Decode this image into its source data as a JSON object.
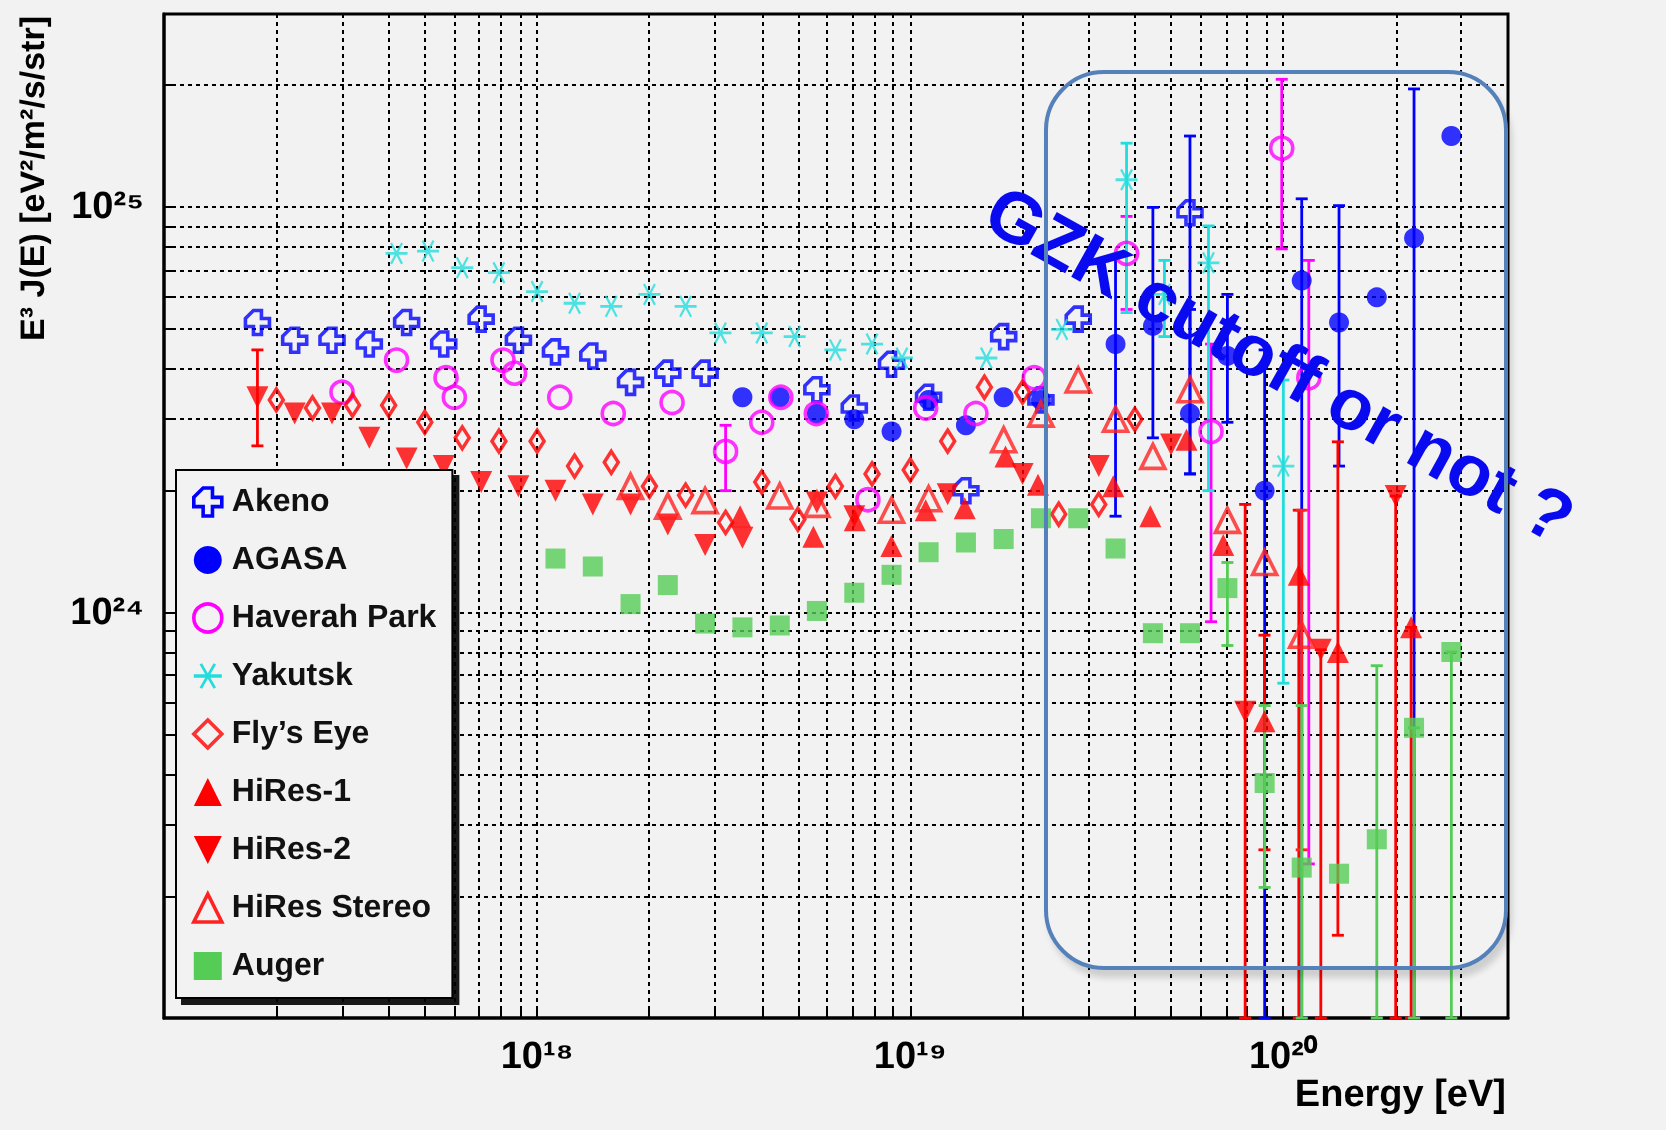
{
  "chart_data": {
    "type": "scatter",
    "xlabel": "Energy [eV]",
    "ylabel": "E³ J(E) [eV²/m²/s/str]",
    "annotations": [
      "GZK cutoff or not ?"
    ],
    "log": "xy",
    "grid": true,
    "legend": "bottom left",
    "xlim": [
      1e+17,
      4e+20
    ],
    "xticks": [
      {
        "value": 2e+17,
        "label": null
      },
      {
        "value": 3e+17,
        "label": null
      },
      {
        "value": 4e+17,
        "label": null
      },
      {
        "value": 5e+17,
        "label": null
      },
      {
        "value": 6e+17,
        "label": null
      },
      {
        "value": 7e+17,
        "label": null
      },
      {
        "value": 8e+17,
        "label": null
      },
      {
        "value": 9e+17,
        "label": null
      },
      {
        "value": 1e+18,
        "label": "10¹⁸"
      },
      {
        "value": 2e+18,
        "label": null
      },
      {
        "value": 3e+18,
        "label": null
      },
      {
        "value": 4e+18,
        "label": null
      },
      {
        "value": 5e+18,
        "label": null
      },
      {
        "value": 6e+18,
        "label": null
      },
      {
        "value": 7e+18,
        "label": null
      },
      {
        "value": 8e+18,
        "label": null
      },
      {
        "value": 9e+18,
        "label": null
      },
      {
        "value": 1e+19,
        "label": "10¹⁹"
      },
      {
        "value": 2e+19,
        "label": null
      },
      {
        "value": 3e+19,
        "label": null
      },
      {
        "value": 4e+19,
        "label": null
      },
      {
        "value": 5e+19,
        "label": null
      },
      {
        "value": 6e+19,
        "label": null
      },
      {
        "value": 7e+19,
        "label": null
      },
      {
        "value": 8e+19,
        "label": null
      },
      {
        "value": 9e+19,
        "label": null
      },
      {
        "value": 1e+20,
        "label": "10²⁰"
      },
      {
        "value": 2e+20,
        "label": null
      },
      {
        "value": 3e+20,
        "label": null
      }
    ],
    "ylim": [
      1e+23,
      3e+25
    ],
    "yticks": [
      {
        "value": 2e+23,
        "label": null
      },
      {
        "value": 3e+23,
        "label": null
      },
      {
        "value": 4e+23,
        "label": null
      },
      {
        "value": 5e+23,
        "label": null
      },
      {
        "value": 6e+23,
        "label": null
      },
      {
        "value": 7e+23,
        "label": null
      },
      {
        "value": 8e+23,
        "label": null
      },
      {
        "value": 9e+23,
        "label": null
      },
      {
        "value": 1e+24,
        "label": "10²⁴"
      },
      {
        "value": 2e+24,
        "label": null
      },
      {
        "value": 3e+24,
        "label": null
      },
      {
        "value": 4e+24,
        "label": null
      },
      {
        "value": 5e+24,
        "label": null
      },
      {
        "value": 6e+24,
        "label": null
      },
      {
        "value": 7e+24,
        "label": null
      },
      {
        "value": 8e+24,
        "label": null
      },
      {
        "value": 9e+24,
        "label": null
      },
      {
        "value": 1e+25,
        "label": "10²⁵"
      },
      {
        "value": 2e+25,
        "label": null
      }
    ],
    "series": [
      {
        "name": "Akeno",
        "color": "#0000ff",
        "marker": "cross-open",
        "x": [
          1.78e+17,
          2.24e+17,
          2.82e+17,
          3.55e+17,
          4.47e+17,
          5.62e+17,
          7.08e+17,
          8.91e+17,
          1.12e+18,
          1.41e+18,
          1.78e+18,
          2.24e+18,
          2.82e+18,
          5.62e+18,
          7.08e+18,
          8.91e+18,
          1.12e+19,
          1.41e+19,
          1.78e+19,
          2.24e+19,
          2.82e+19,
          5.62e+19
        ],
        "values": [
          5.2e+24,
          4.7e+24,
          4.7e+24,
          4.6e+24,
          5.2e+24,
          4.6e+24,
          5.3e+24,
          4.7e+24,
          4.4e+24,
          4.3e+24,
          3.7e+24,
          3.9e+24,
          3.9e+24,
          3.55e+24,
          3.2e+24,
          4.1e+24,
          3.4e+24,
          2e+24,
          4.8e+24,
          3.35e+24,
          5.3e+24,
          9.7e+24
        ],
        "errors": [
          null,
          null,
          null,
          null,
          null,
          null,
          null,
          null,
          null,
          null,
          null,
          null,
          null,
          null,
          null,
          null,
          null,
          null,
          null,
          null,
          null,
          [
            2.2e+24,
            1.5e+25
          ]
        ]
      },
      {
        "name": "AGASA",
        "color": "#0000ff",
        "marker": "circle",
        "x": [
          3.55e+18,
          4.47e+18,
          5.62e+18,
          7.08e+18,
          8.91e+18,
          1.12e+19,
          1.41e+19,
          1.78e+19,
          2.24e+19,
          3.55e+19,
          4.47e+19,
          5.62e+19,
          7.08e+19,
          8.91e+19,
          1.12e+20,
          1.41e+20,
          1.78e+20,
          2.24e+20,
          2.82e+20
        ],
        "values": [
          3.4e+24,
          3.4e+24,
          3.1e+24,
          3e+24,
          2.8e+24,
          3.35e+24,
          2.9e+24,
          3.4e+24,
          3.35e+24,
          4.6e+24,
          5.1e+24,
          3.1e+24,
          4.3e+24,
          2e+24,
          6.6e+24,
          5.2e+24,
          6e+24,
          8.4e+24,
          1.5e+25
        ],
        "errors": [
          null,
          null,
          null,
          null,
          null,
          null,
          null,
          null,
          null,
          [
            1.73e+24,
            7.6e+24
          ],
          [
            2.7e+24,
            1e+25
          ],
          [
            2.2e+24,
            5.6e+24
          ],
          [
            2.95e+24,
            6.1e+24
          ],
          [
            1e+23,
            4.45e+24
          ],
          [
            1e+23,
            1.05e+25
          ],
          [
            2.3e+24,
            1.01e+25
          ],
          null,
          [
            1e+23,
            1.96e+25
          ],
          null
        ]
      },
      {
        "name": "Haverah Park",
        "color": "#ff00ff",
        "marker": "circle-open",
        "x": [
          3e+17,
          4.2e+17,
          5.7e+17,
          6e+17,
          8.1e+17,
          8.7e+17,
          1.15e+18,
          1.6e+18,
          2.3e+18,
          3.2e+18,
          4e+18,
          4.5e+18,
          5.6e+18,
          7.7e+18,
          1.1e+19,
          1.5e+19,
          2.15e+19,
          3.8e+19,
          6.4e+19,
          9.9e+19,
          1.17e+20
        ],
        "values": [
          3.5e+24,
          4.2e+24,
          3.8e+24,
          3.4e+24,
          4.2e+24,
          3.9e+24,
          3.4e+24,
          3.1e+24,
          3.3e+24,
          2.5e+24,
          2.95e+24,
          3.4e+24,
          3.1e+24,
          1.9e+24,
          3.2e+24,
          3.1e+24,
          3.8e+24,
          7.7e+24,
          2.8e+24,
          1.4e+25,
          3.8e+24
        ],
        "errors": [
          null,
          null,
          null,
          null,
          null,
          null,
          null,
          null,
          null,
          [
            2e+24,
            2.9e+24
          ],
          null,
          null,
          null,
          null,
          null,
          null,
          null,
          [
            5.6e+24,
            9.5e+24
          ],
          [
            9.5e+23,
            4.6e+24
          ],
          [
            7.9e+24,
            2.07e+25
          ],
          [
            2.4e+23,
            7.4e+24
          ]
        ]
      },
      {
        "name": "Yakutsk",
        "color": "#22dddd",
        "marker": "cross",
        "x": [
          4.2e+17,
          5.1e+17,
          6.3e+17,
          7.9e+17,
          1e+18,
          1.26e+18,
          1.58e+18,
          2e+18,
          2.5e+18,
          3.1e+18,
          4e+18,
          4.9e+18,
          6.3e+18,
          7.9e+18,
          9.5e+18,
          1.6e+19,
          2.55e+19,
          3.8e+19,
          4.8e+19,
          6.3e+19,
          1e+20
        ],
        "values": [
          7.7e+24,
          7.8e+24,
          7.1e+24,
          6.9e+24,
          6.2e+24,
          5.8e+24,
          5.7e+24,
          6.1e+24,
          5.7e+24,
          4.9e+24,
          4.9e+24,
          4.8e+24,
          4.45e+24,
          4.6e+24,
          4.25e+24,
          4.25e+24,
          5e+24,
          1.17e+25,
          6.1e+24,
          7.3e+24,
          2.3e+24
        ],
        "errors": [
          null,
          null,
          null,
          null,
          null,
          null,
          null,
          null,
          null,
          null,
          null,
          null,
          null,
          null,
          null,
          null,
          null,
          [
            5.5e+24,
            1.44e+25
          ],
          [
            4.8e+24,
            7.4e+24
          ],
          [
            2e+24,
            9e+24
          ],
          [
            6.7e+23,
            3.75e+24
          ]
        ]
      },
      {
        "name": "Fly’s Eye",
        "color": "#ff0000",
        "marker": "diamond-open",
        "x": [
          2e+17,
          2.5e+17,
          3.2e+17,
          4e+17,
          5e+17,
          6.3e+17,
          7.9e+17,
          1e+18,
          1.26e+18,
          1.58e+18,
          2e+18,
          2.5e+18,
          3.2e+18,
          4e+18,
          5e+18,
          6.3e+18,
          7.9e+18,
          1e+19,
          1.26e+19,
          1.58e+19,
          2e+19,
          2.5e+19,
          3.2e+19,
          4e+19
        ],
        "values": [
          3.35e+24,
          3.2e+24,
          3.25e+24,
          3.25e+24,
          2.95e+24,
          2.7e+24,
          2.65e+24,
          2.65e+24,
          2.3e+24,
          2.35e+24,
          2.05e+24,
          1.95e+24,
          1.67e+24,
          2.1e+24,
          1.7e+24,
          2.05e+24,
          2.2e+24,
          2.25e+24,
          2.65e+24,
          3.6e+24,
          3.5e+24,
          1.75e+24,
          1.85e+24,
          3e+24
        ]
      },
      {
        "name": "HiRes-1",
        "color": "#ff0000",
        "marker": "triangle",
        "x": [
          3.5e+18,
          5.5e+18,
          7.1e+18,
          8.9e+18,
          1.1e+19,
          1.4e+19,
          1.8e+19,
          2.2e+19,
          3.5e+19,
          4.4e+19,
          5.5e+19,
          6.9e+19,
          8.9e+19,
          1.1e+20,
          1.4e+20,
          2.2e+20
        ],
        "values": [
          1.73e+24,
          1.54e+24,
          1.69e+24,
          1.46e+24,
          1.79e+24,
          1.81e+24,
          2.43e+24,
          2.07e+24,
          2.05e+24,
          1.73e+24,
          2.67e+24,
          1.47e+24,
          5.4e+23,
          1.24e+24,
          8e+23,
          9.2e+23
        ],
        "errors": [
          null,
          null,
          null,
          null,
          null,
          null,
          null,
          null,
          null,
          null,
          null,
          null,
          [
            2.6e+23,
            8.8e+23
          ],
          [
            1e+23,
            1.79e+24
          ],
          [
            1.6e+23,
            2.64e+24
          ],
          [
            1e+23,
            9.2e+23
          ]
        ]
      },
      {
        "name": "HiRes-2",
        "color": "#ff0000",
        "marker": "triangle-down",
        "x": [
          1.78e+17,
          2.24e+17,
          2.82e+17,
          3.55e+17,
          4.47e+17,
          5.62e+17,
          7.08e+17,
          8.91e+17,
          1.12e+18,
          1.41e+18,
          1.78e+18,
          2.24e+18,
          2.82e+18,
          3.55e+18,
          5.62e+18,
          7.08e+18,
          1.26e+19,
          2e+19,
          3.2e+19,
          5e+19,
          7.9e+19,
          1.26e+20,
          2e+20
        ],
        "values": [
          3.4e+24,
          3.1e+24,
          3.1e+24,
          2.7e+24,
          2.4e+24,
          2.3e+24,
          2.1e+24,
          2.05e+24,
          2e+24,
          1.85e+24,
          1.85e+24,
          1.65e+24,
          1.47e+24,
          1.53e+24,
          1.87e+24,
          1.73e+24,
          1.96e+24,
          2.2e+24,
          2.3e+24,
          2.6e+24,
          5.7e+23,
          8.1e+23,
          1.94e+24
        ],
        "errors": [
          [
            2.58e+24,
            4.45e+24
          ],
          null,
          null,
          null,
          null,
          null,
          null,
          null,
          null,
          null,
          null,
          null,
          null,
          null,
          null,
          null,
          null,
          null,
          null,
          null,
          [
            1e+23,
            1.85e+24
          ],
          [
            1e+23,
            8.1e+23
          ],
          [
            1e+23,
            1.94e+24
          ]
        ]
      },
      {
        "name": "HiRes Stereo",
        "color": "#ff2222",
        "marker": "triangle-open",
        "x": [
          1.78e+18,
          2.24e+18,
          2.82e+18,
          4.47e+18,
          5.62e+18,
          8.91e+18,
          1.12e+19,
          1.78e+19,
          2.24e+19,
          2.82e+19,
          3.55e+19,
          4.47e+19,
          5.62e+19,
          7.08e+19,
          8.91e+19,
          1.12e+20
        ],
        "values": [
          2.05e+24,
          1.83e+24,
          1.89e+24,
          1.94e+24,
          1.85e+24,
          1.79e+24,
          1.91e+24,
          2.67e+24,
          3.09e+24,
          3.75e+24,
          3e+24,
          2.43e+24,
          3.55e+24,
          1.69e+24,
          1.33e+24,
          8.8e+23
        ],
        "errors": [
          null,
          null,
          null,
          null,
          null,
          null,
          null,
          null,
          null,
          null,
          null,
          null,
          null,
          null,
          null,
          [
            2.6e+23,
            1.79e+24
          ]
        ]
      },
      {
        "name": "Auger",
        "color": "#55cc55",
        "marker": "square",
        "x": [
          1.12e+18,
          1.41e+18,
          1.78e+18,
          2.24e+18,
          2.82e+18,
          3.55e+18,
          4.47e+18,
          5.62e+18,
          7.08e+18,
          8.91e+18,
          1.12e+19,
          1.41e+19,
          1.78e+19,
          2.24e+19,
          2.82e+19,
          3.55e+19,
          4.47e+19,
          5.62e+19,
          7.08e+19,
          8.91e+19,
          1.12e+20,
          1.41e+20,
          1.78e+20,
          2.24e+20,
          2.82e+20
        ],
        "values": [
          1.36e+24,
          1.3e+24,
          1.05e+24,
          1.17e+24,
          9.4e+23,
          9.2e+23,
          9.3e+23,
          1.01e+24,
          1.12e+24,
          1.24e+24,
          1.41e+24,
          1.49e+24,
          1.52e+24,
          1.71e+24,
          1.71e+24,
          1.44e+24,
          8.9e+23,
          8.9e+23,
          1.15e+24,
          3.8e+23,
          2.35e+23,
          2.27e+23,
          2.76e+23,
          5.2e+23,
          8e+23
        ],
        "errors": [
          null,
          null,
          null,
          null,
          null,
          null,
          null,
          null,
          null,
          null,
          null,
          null,
          null,
          null,
          null,
          null,
          null,
          null,
          [
            8.3e+23,
            1.33e+24
          ],
          [
            2.1e+23,
            5.9e+23
          ],
          [
            1e+23,
            5.9e+23
          ],
          null,
          [
            1e+23,
            7.4e+23
          ],
          [
            1e+23,
            5.2e+23
          ],
          [
            1e+23,
            8e+23
          ]
        ]
      }
    ]
  }
}
